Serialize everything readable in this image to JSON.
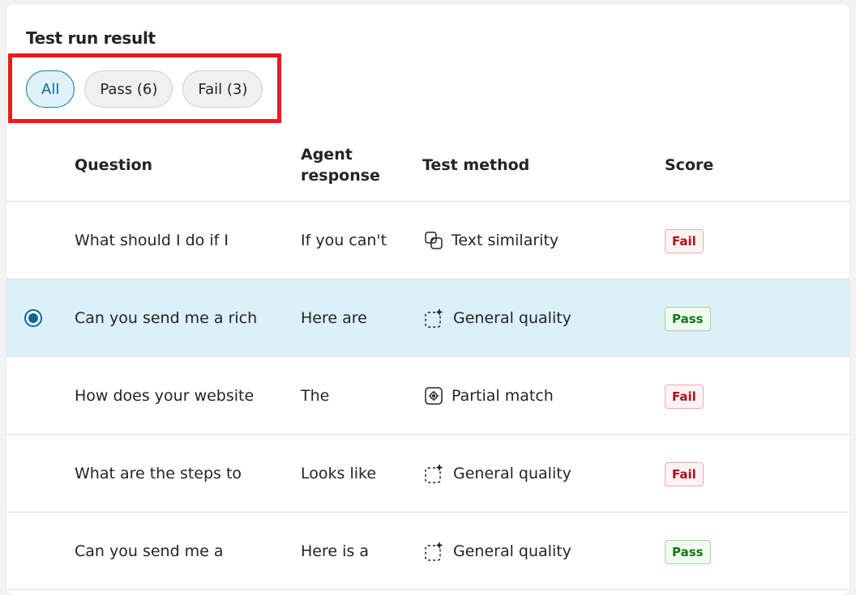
{
  "title": "Test run result",
  "filters": [
    {
      "label": "All",
      "active": true
    },
    {
      "label": "Pass (6)"
    },
    {
      "label": "Fail (3)"
    }
  ],
  "columns": {
    "question": "Question",
    "agent_response": "Agent response",
    "test_method": "Test method",
    "score": "Score"
  },
  "rows": [
    {
      "question": "What should I do if I",
      "response": "If you can't",
      "method": "Text similarity",
      "method_icon": "text-similarity-icon",
      "score": "Fail"
    },
    {
      "question": "Can you send me a rich",
      "response": "Here are",
      "method": "General quality",
      "method_icon": "sparkle-icon",
      "score": "Pass",
      "selected": true
    },
    {
      "question": "How does your website",
      "response": "The",
      "method": "Partial match",
      "method_icon": "target-icon",
      "score": "Fail"
    },
    {
      "question": "What are the steps to",
      "response": "Looks like",
      "method": "General quality",
      "method_icon": "sparkle-icon",
      "score": "Fail"
    },
    {
      "question": "Can you send me a",
      "response": "Here is a",
      "method": "General quality",
      "method_icon": "sparkle-icon",
      "score": "Pass"
    }
  ],
  "colors": {
    "fail": "#b10e1c",
    "pass": "#107c10",
    "selected_row": "#dcf0f9",
    "highlight": "#e81c1c"
  }
}
